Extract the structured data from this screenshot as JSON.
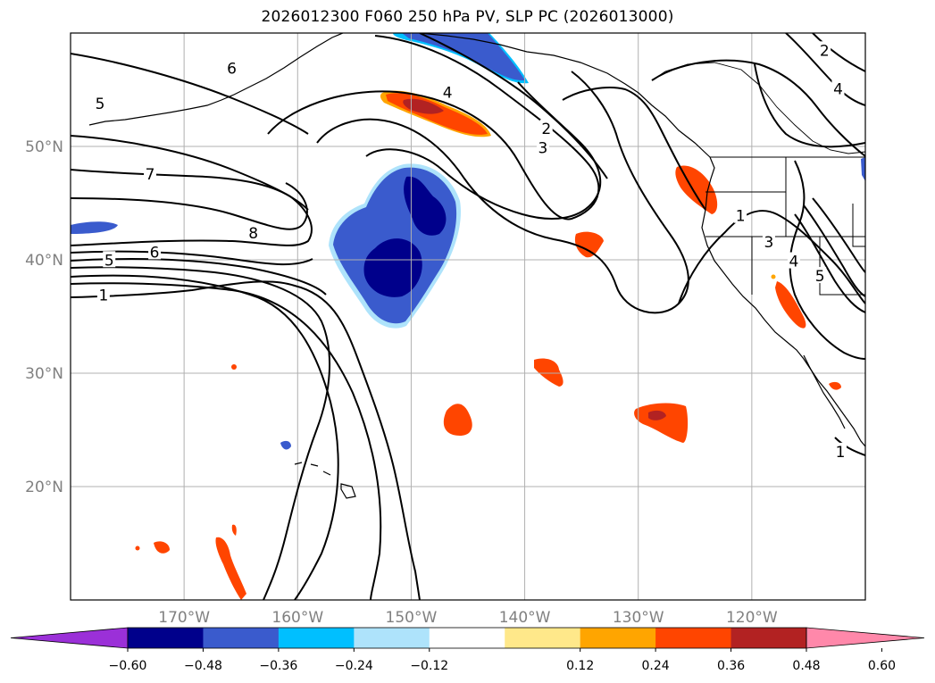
{
  "title": "2026012300 F060 250 hPa PV, SLP PC (2026013000)",
  "map": {
    "lat_ticks": [
      {
        "value": 50,
        "label": "50°N"
      },
      {
        "value": 40,
        "label": "40°N"
      },
      {
        "value": 30,
        "label": "30°N"
      },
      {
        "value": 20,
        "label": "20°N"
      }
    ],
    "lon_ticks": [
      {
        "value": -170,
        "label": "170°W"
      },
      {
        "value": -160,
        "label": "160°W"
      },
      {
        "value": -150,
        "label": "150°W"
      },
      {
        "value": -140,
        "label": "140°W"
      },
      {
        "value": -130,
        "label": "130°W"
      },
      {
        "value": -120,
        "label": "120°W"
      }
    ],
    "extent": {
      "lon_min": -180,
      "lon_max": -110,
      "lat_min": 10,
      "lat_max": 60
    },
    "grid": true,
    "contour_labels": [
      {
        "text": "6",
        "lon": -165.8,
        "lat": 56.8
      },
      {
        "text": "5",
        "lon": -177.4,
        "lat": 53.7
      },
      {
        "text": "4",
        "lon": -146.8,
        "lat": 54.7
      },
      {
        "text": "2",
        "lon": -138.1,
        "lat": 51.5
      },
      {
        "text": "3",
        "lon": -138.4,
        "lat": 49.8
      },
      {
        "text": "7",
        "lon": -173.0,
        "lat": 47.5
      },
      {
        "text": "8",
        "lon": -163.9,
        "lat": 42.3
      },
      {
        "text": "6",
        "lon": -172.6,
        "lat": 40.6
      },
      {
        "text": "5",
        "lon": -176.6,
        "lat": 39.9
      },
      {
        "text": "1",
        "lon": -177.1,
        "lat": 36.8
      },
      {
        "text": "1",
        "lon": -121.0,
        "lat": 43.8
      },
      {
        "text": "3",
        "lon": -118.5,
        "lat": 41.5
      },
      {
        "text": "4",
        "lon": -116.3,
        "lat": 39.8
      },
      {
        "text": "5",
        "lon": -114.0,
        "lat": 38.5
      },
      {
        "text": "2",
        "lon": -113.6,
        "lat": 58.4
      },
      {
        "text": "4",
        "lon": -112.4,
        "lat": 55.0
      },
      {
        "text": "1",
        "lon": -112.2,
        "lat": 23.0
      }
    ]
  },
  "colorbar": {
    "ticks": [
      "−0.60",
      "−0.48",
      "−0.36",
      "−0.24",
      "−0.12",
      "0.12",
      "0.24",
      "0.36",
      "0.48",
      "0.60"
    ],
    "colors": [
      "#9b30d8",
      "#00008b",
      "#3a5bcd",
      "#00bfff",
      "#aee3fb",
      "#ffffff",
      "#ffe88a",
      "#ffa500",
      "#ff4500",
      "#b22222",
      "#ff88aa"
    ]
  }
}
